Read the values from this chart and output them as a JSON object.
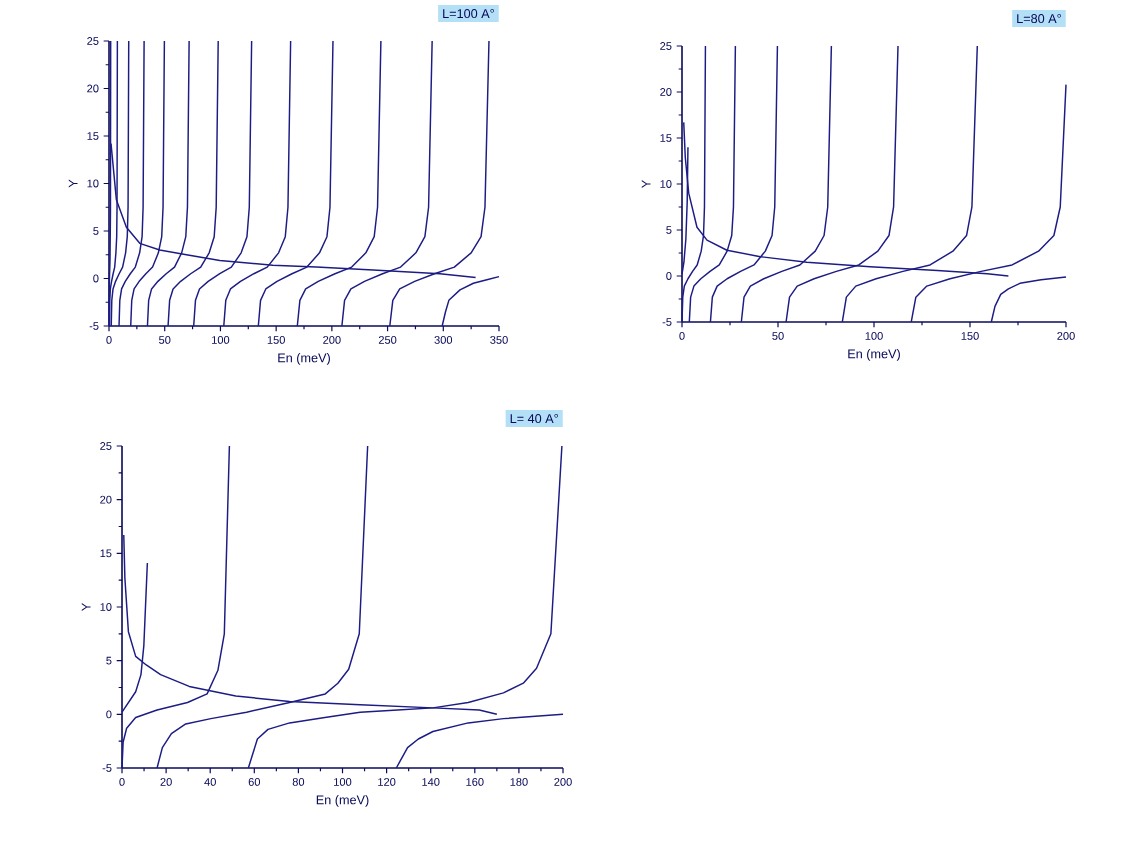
{
  "chart_data": [
    {
      "type": "line",
      "title": "L=100 A°",
      "xlabel": "En (meV)",
      "ylabel": "Y",
      "xlim": [
        0,
        350
      ],
      "ylim": [
        -5,
        25
      ],
      "xticks": [
        0,
        50,
        100,
        150,
        200,
        250,
        300,
        350
      ],
      "yticks": [
        -5,
        0,
        5,
        10,
        15,
        20,
        25
      ],
      "series": [
        {
          "color": "#1c1c84",
          "x": [
            0,
            0.1,
            0.4,
            0.9,
            1.3,
            1.5
          ],
          "values": [
            -5,
            -2,
            0,
            2,
            7,
            25
          ]
        },
        {
          "color": "#1c1c84",
          "x": [
            0.5,
            0.7,
            1.2,
            2.3,
            3.7,
            5.1,
            6.2,
            6.9,
            7.2,
            7.5
          ],
          "values": [
            -5,
            -2.3,
            -1.1,
            -0.3,
            0.5,
            1.2,
            2.7,
            4.4,
            7.5,
            25
          ]
        },
        {
          "color": "#1c1c84",
          "x": [
            2,
            2.5,
            3.6,
            5.9,
            9.1,
            12.2,
            14.9,
            16.4,
            17.1,
            17.7
          ],
          "values": [
            -5,
            -2.3,
            -1.1,
            -0.3,
            0.5,
            1.2,
            2.7,
            4.4,
            7.5,
            25
          ]
        },
        {
          "color": "#1c1c84",
          "x": [
            9,
            9.7,
            11.3,
            14.6,
            19.1,
            23.6,
            27.5,
            29.7,
            30.6,
            31.5
          ],
          "values": [
            -5,
            -2.3,
            -1.1,
            -0.3,
            0.5,
            1.2,
            2.7,
            4.4,
            7.5,
            25
          ]
        },
        {
          "color": "#1c1c84",
          "x": [
            19.5,
            20.4,
            22.5,
            27.1,
            33.1,
            39.1,
            44.3,
            47.3,
            48.5,
            49.7
          ],
          "values": [
            -5,
            -2.3,
            -1.1,
            -0.3,
            0.5,
            1.2,
            2.7,
            4.4,
            7.5,
            25
          ]
        },
        {
          "color": "#1c1c84",
          "x": [
            34.5,
            35.6,
            38.2,
            43.9,
            51.3,
            58.8,
            65.2,
            68.9,
            70.4,
            71.9
          ],
          "values": [
            -5,
            -2.3,
            -1.1,
            -0.3,
            0.5,
            1.2,
            2.7,
            4.4,
            7.5,
            25
          ]
        },
        {
          "color": "#1c1c84",
          "x": [
            53,
            54.4,
            57.5,
            64.3,
            73.3,
            82.3,
            89.9,
            94.4,
            96.2,
            98
          ],
          "values": [
            -5,
            -2.3,
            -1.1,
            -0.3,
            0.5,
            1.2,
            2.7,
            4.4,
            7.5,
            25
          ]
        },
        {
          "color": "#1c1c84",
          "x": [
            76,
            77.6,
            81.2,
            89,
            99.4,
            109.8,
            118.6,
            123.8,
            125.9,
            128
          ],
          "values": [
            -5,
            -2.3,
            -1.1,
            -0.3,
            0.5,
            1.2,
            2.7,
            4.4,
            7.5,
            25
          ]
        },
        {
          "color": "#1c1c84",
          "x": [
            103,
            104.8,
            109,
            118,
            130,
            142,
            152.2,
            158.2,
            160.6,
            163
          ],
          "values": [
            -5,
            -2.3,
            -1.1,
            -0.3,
            0.5,
            1.2,
            2.7,
            4.4,
            7.5,
            25
          ]
        },
        {
          "color": "#1c1c84",
          "x": [
            134,
            136,
            140.7,
            150.8,
            164.2,
            177.6,
            188.9,
            195.6,
            198.3,
            201
          ],
          "values": [
            -5,
            -2.3,
            -1.1,
            -0.3,
            0.5,
            1.2,
            2.7,
            4.4,
            7.5,
            25
          ]
        },
        {
          "color": "#1c1c84",
          "x": [
            169,
            171.3,
            176.5,
            187.8,
            202.8,
            217.8,
            230.5,
            238,
            241,
            244
          ],
          "values": [
            -5,
            -2.3,
            -1.1,
            -0.3,
            0.5,
            1.2,
            2.7,
            4.4,
            7.5,
            25
          ]
        },
        {
          "color": "#1c1c84",
          "x": [
            209,
            211.4,
            217.1,
            229.3,
            245.5,
            261.7,
            275.4,
            283.5,
            286.8,
            290
          ],
          "values": [
            -5,
            -2.3,
            -1.1,
            -0.3,
            0.5,
            1.2,
            2.7,
            4.4,
            7.5,
            25
          ]
        },
        {
          "color": "#1c1c84",
          "x": [
            252,
            254.7,
            260.9,
            274.3,
            292.1,
            309.9,
            325,
            333.9,
            337.4,
            341
          ],
          "values": [
            -5,
            -2.3,
            -1.1,
            -0.3,
            0.5,
            1.2,
            2.7,
            4.4,
            7.5,
            25
          ]
        },
        {
          "color": "#1c1c84",
          "x": [
            299,
            302,
            305,
            315,
            327,
            340,
            350
          ],
          "values": [
            -5,
            -3.5,
            -2.3,
            -1.2,
            -0.5,
            -0.1,
            0.2
          ]
        },
        {
          "color": "#1c1c84",
          "x": [
            1.8,
            6.6,
            15.6,
            27.6,
            45.5,
            69.5,
            99.5,
            147,
            186,
            237,
            297,
            329
          ],
          "values": [
            14.2,
            8.3,
            5.4,
            3.7,
            3.0,
            2.5,
            1.9,
            1.4,
            1.2,
            0.9,
            0.5,
            0.1
          ]
        }
      ]
    },
    {
      "type": "line",
      "title": "L=80 A°",
      "xlabel": "En  (meV)",
      "ylabel": "Y",
      "xlim": [
        0,
        200
      ],
      "ylim": [
        -5,
        25
      ],
      "xticks": [
        0,
        50,
        100,
        150,
        200
      ],
      "yticks": [
        -5,
        0,
        5,
        10,
        15,
        20,
        25
      ],
      "series": [
        {
          "color": "#1c1c84",
          "x": [
            0,
            0.4,
            1.2,
            3.1,
            5.5,
            7.9,
            10,
            11.2,
            11.7,
            12.2
          ],
          "values": [
            -5,
            -2.3,
            -1.1,
            -0.3,
            0.5,
            1.2,
            2.7,
            4.4,
            7.5,
            25
          ]
        },
        {
          "color": "#1c1c84",
          "x": [
            0,
            1,
            2,
            2.7,
            3.1
          ],
          "values": [
            0.2,
            1.5,
            4,
            8,
            14
          ]
        },
        {
          "color": "#1c1c84",
          "x": [
            3.8,
            4.5,
            6.2,
            9.8,
            14.6,
            19.4,
            23.5,
            25.9,
            26.8,
            27.8
          ],
          "values": [
            -5,
            -2.3,
            -1.1,
            -0.3,
            0.5,
            1.2,
            2.7,
            4.4,
            7.5,
            25
          ]
        },
        {
          "color": "#1c1c84",
          "x": [
            14.8,
            15.8,
            18.3,
            23.5,
            30.5,
            37.5,
            43.4,
            46.9,
            48.3,
            49.7
          ],
          "values": [
            -5,
            -2.3,
            -1.1,
            -0.3,
            0.5,
            1.2,
            2.7,
            4.4,
            7.5,
            25
          ]
        },
        {
          "color": "#1c1c84",
          "x": [
            30.9,
            32.3,
            35.6,
            42.6,
            52,
            61.4,
            69.4,
            74,
            75.9,
            77.8
          ],
          "values": [
            -5,
            -2.3,
            -1.1,
            -0.3,
            0.5,
            1.2,
            2.7,
            4.4,
            7.5,
            25
          ]
        },
        {
          "color": "#1c1c84",
          "x": [
            54.2,
            56,
            60,
            68.8,
            80.4,
            92.1,
            102,
            107.8,
            110.2,
            112.5
          ],
          "values": [
            -5,
            -2.3,
            -1.1,
            -0.3,
            0.5,
            1.2,
            2.7,
            4.4,
            7.5,
            25
          ]
        },
        {
          "color": "#1c1c84",
          "x": [
            83.5,
            85.6,
            90.5,
            101.1,
            115.1,
            129.2,
            141.1,
            148.2,
            151,
            153.8
          ],
          "values": [
            -5,
            -2.3,
            -1.1,
            -0.3,
            0.5,
            1.2,
            2.7,
            4.4,
            7.5,
            25
          ]
        },
        {
          "color": "#1c1c84",
          "x": [
            119.4,
            121.8,
            127.5,
            139.6,
            155.8,
            171.9,
            185.7,
            193.7,
            197,
            200
          ],
          "values": [
            -5,
            -2.3,
            -1.1,
            -0.3,
            0.5,
            1.2,
            2.7,
            4.4,
            7.5,
            20.8
          ]
        },
        {
          "color": "#1c1c84",
          "x": [
            161.1,
            163,
            166,
            170,
            176,
            187,
            200
          ],
          "values": [
            -5,
            -3.3,
            -2,
            -1.4,
            -0.8,
            -0.4,
            -0.1
          ]
        },
        {
          "color": "#1c1c84",
          "x": [
            0.9,
            1.7,
            3.5,
            7.8,
            13,
            23.4,
            40.8,
            65,
            98,
            133,
            159,
            170
          ],
          "values": [
            16.7,
            12.9,
            9,
            5.3,
            3.9,
            2.8,
            2.1,
            1.5,
            1.0,
            0.6,
            0.25,
            0
          ]
        }
      ]
    },
    {
      "type": "line",
      "title": "L= 40 A°",
      "xlabel": "En (meV)",
      "ylabel": "Y",
      "xlim": [
        0,
        200
      ],
      "ylim": [
        -5,
        25
      ],
      "xticks": [
        0,
        20,
        40,
        60,
        80,
        100,
        120,
        140,
        160,
        180,
        200
      ],
      "yticks": [
        -5,
        0,
        5,
        10,
        15,
        20,
        25
      ],
      "series": [
        {
          "color": "#1c1c84",
          "x": [
            0,
            0.5,
            2.1,
            6.2,
            15.9,
            29.7,
            38.6,
            43.5,
            46.4,
            48.7
          ],
          "values": [
            -5,
            -2.6,
            -1.3,
            -0.3,
            0.4,
            1.1,
            1.9,
            4.1,
            7.5,
            25
          ]
        },
        {
          "color": "#1c1c84",
          "x": [
            0,
            6.2,
            8.6,
            9.9,
            11.5
          ],
          "values": [
            0.2,
            2.1,
            3.7,
            6.4,
            14.1
          ]
        },
        {
          "color": "#1c1c84",
          "x": [
            15.9,
            18.3,
            22.4,
            28.9,
            40.3,
            56.5,
            76,
            92.2,
            97.9,
            102.8,
            107.6,
            111.4
          ],
          "values": [
            -5,
            -3.1,
            -1.8,
            -0.9,
            -0.4,
            0.2,
            1.1,
            1.9,
            2.9,
            4.2,
            7.5,
            25
          ]
        },
        {
          "color": "#1c1c84",
          "x": [
            57.3,
            61.4,
            66.2,
            76,
            92,
            108,
            125,
            141,
            157,
            173,
            182,
            188,
            194.5,
            199.5
          ],
          "values": [
            -5,
            -2.3,
            -1.4,
            -0.8,
            -0.3,
            0.2,
            0.4,
            0.6,
            1.1,
            2.0,
            2.9,
            4.3,
            7.5,
            25
          ]
        },
        {
          "color": "#1c1c84",
          "x": [
            124.4,
            129.5,
            134.4,
            141,
            157,
            173,
            200
          ],
          "values": [
            -5,
            -3.1,
            -2.3,
            -1.6,
            -0.8,
            -0.4,
            0
          ]
        },
        {
          "color": "#1c1c84",
          "x": [
            0.8,
            1.3,
            2.9,
            6.2,
            11,
            17.5,
            30.5,
            51.6,
            76,
            108,
            141,
            162,
            170
          ],
          "values": [
            16.7,
            12.7,
            7.7,
            5.4,
            4.6,
            3.7,
            2.6,
            1.7,
            1.2,
            0.9,
            0.6,
            0.4,
            0
          ]
        }
      ]
    }
  ]
}
